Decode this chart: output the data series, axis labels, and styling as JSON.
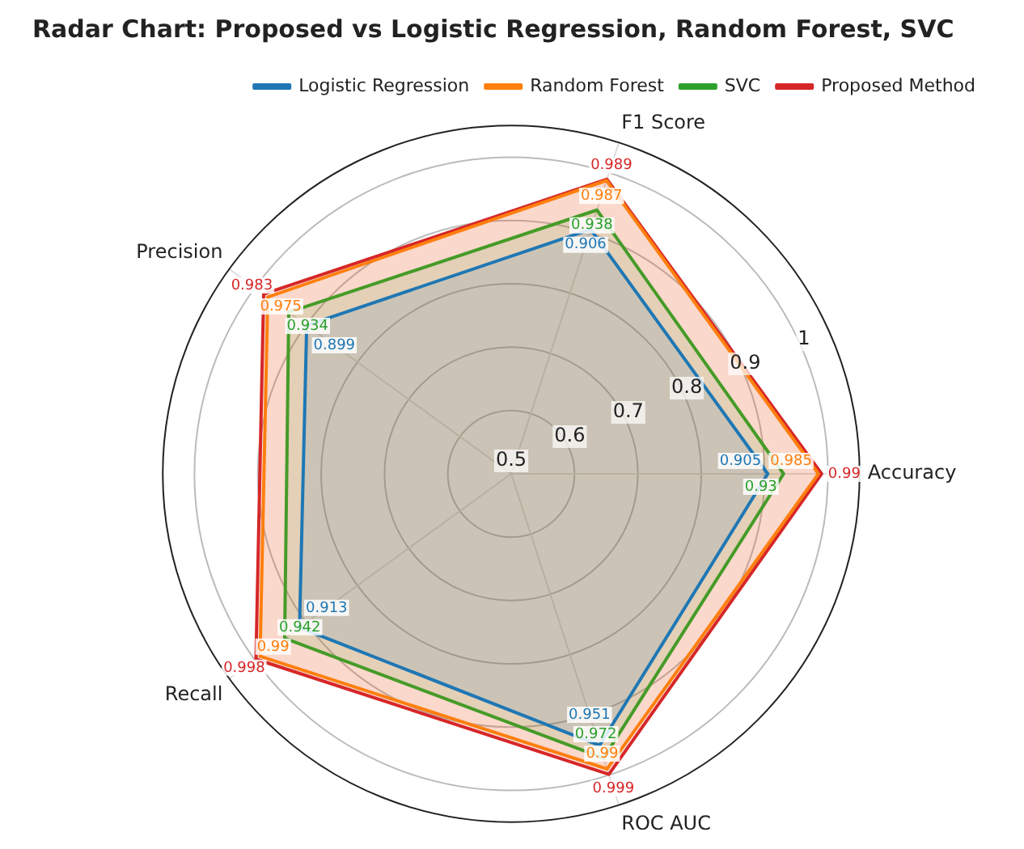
{
  "chart_data": {
    "type": "radar",
    "title": "Radar Chart: Proposed vs Logistic Regression, Random Forest, SVC",
    "categories": [
      "F1 Score",
      "Accuracy",
      "ROC AUC",
      "Recall",
      "Precision"
    ],
    "series": [
      {
        "name": "Logistic Regression",
        "color": "#1f77b4",
        "values": [
          0.906,
          0.905,
          0.951,
          0.913,
          0.899
        ]
      },
      {
        "name": "Random Forest",
        "color": "#ff7f0e",
        "values": [
          0.987,
          0.985,
          0.99,
          0.99,
          0.975
        ]
      },
      {
        "name": "SVC",
        "color": "#2ca02c",
        "values": [
          0.938,
          0.93,
          0.972,
          0.942,
          0.934
        ]
      },
      {
        "name": "Proposed Method",
        "color": "#d62728",
        "values": [
          0.989,
          0.99,
          0.999,
          0.998,
          0.983
        ]
      }
    ],
    "ylim": [
      0.5,
      1.05
    ],
    "yticks": [
      0.5,
      0.6,
      0.7,
      0.8,
      0.9,
      1.0
    ],
    "grid": true,
    "legend": "top right",
    "data_labels": true
  }
}
